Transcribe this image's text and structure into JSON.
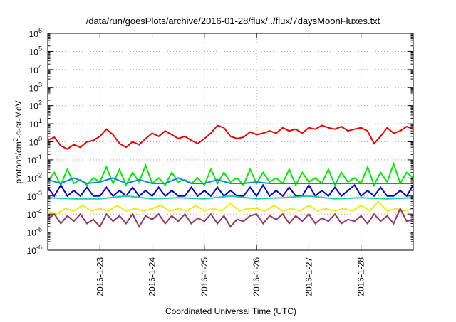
{
  "chart_data": {
    "type": "line",
    "title": "/data/run/goesPlots/archive/2016-01-28/flux/../flux/7daysMoonFluxes.txt",
    "xlabel": "Coordinated Universal Time (UTC)",
    "ylabel": "protons/cm2-s-sr-MeV",
    "yscale": "log",
    "ylim": [
      1e-06,
      1000000.0
    ],
    "xlim": [
      "2016-01-22T00:00",
      "2016-01-29T00:00"
    ],
    "x_ticks": [
      "2016-1-23",
      "2016-1-24",
      "2016-1-25",
      "2016-1-26",
      "2016-1-27",
      "2016-1-28"
    ],
    "y_ticks": [
      {
        "base": "10",
        "exp": "-6"
      },
      {
        "base": "10",
        "exp": "-5"
      },
      {
        "base": "10",
        "exp": "-4"
      },
      {
        "base": "10",
        "exp": "-3"
      },
      {
        "base": "10",
        "exp": "-2"
      },
      {
        "base": "10",
        "exp": "-1"
      },
      {
        "base": "10",
        "exp": "0"
      },
      {
        "base": "10",
        "exp": "1"
      },
      {
        "base": "10",
        "exp": "2"
      },
      {
        "base": "10",
        "exp": "3"
      },
      {
        "base": "10",
        "exp": "4"
      },
      {
        "base": "10",
        "exp": "5"
      },
      {
        "base": "10",
        "exp": "6"
      }
    ],
    "grid": true,
    "legend": "none",
    "series": [
      {
        "color": "#ee0000",
        "x": [
          "2016-01-22T00:00",
          "2016-01-22T03:00",
          "2016-01-22T06:00",
          "2016-01-22T09:00",
          "2016-01-22T12:00",
          "2016-01-22T15:00",
          "2016-01-22T18:00",
          "2016-01-22T21:00",
          "2016-01-23T00:00",
          "2016-01-23T03:00",
          "2016-01-23T06:00",
          "2016-01-23T09:00",
          "2016-01-23T12:00",
          "2016-01-23T15:00",
          "2016-01-23T18:00",
          "2016-01-23T21:00",
          "2016-01-24T00:00",
          "2016-01-24T03:00",
          "2016-01-24T06:00",
          "2016-01-24T09:00",
          "2016-01-24T12:00",
          "2016-01-24T15:00",
          "2016-01-24T18:00",
          "2016-01-24T21:00",
          "2016-01-25T00:00",
          "2016-01-25T03:00",
          "2016-01-25T06:00",
          "2016-01-25T09:00",
          "2016-01-25T12:00",
          "2016-01-25T15:00",
          "2016-01-25T18:00",
          "2016-01-25T21:00",
          "2016-01-26T00:00",
          "2016-01-26T03:00",
          "2016-01-26T06:00",
          "2016-01-26T09:00",
          "2016-01-26T12:00",
          "2016-01-26T15:00",
          "2016-01-26T18:00",
          "2016-01-26T21:00",
          "2016-01-27T00:00",
          "2016-01-27T03:00",
          "2016-01-27T06:00",
          "2016-01-27T09:00",
          "2016-01-27T12:00",
          "2016-01-27T15:00",
          "2016-01-27T18:00",
          "2016-01-27T21:00",
          "2016-01-28T00:00",
          "2016-01-28T03:00",
          "2016-01-28T06:00",
          "2016-01-28T09:00",
          "2016-01-28T12:00",
          "2016-01-28T15:00",
          "2016-01-28T18:00",
          "2016-01-28T21:00",
          "2016-01-29T00:00"
        ],
        "values": [
          1.2,
          1.8,
          0.6,
          0.4,
          0.7,
          0.5,
          1.0,
          1.2,
          2.0,
          5.0,
          2.5,
          0.8,
          0.5,
          1.0,
          0.7,
          1.5,
          3.0,
          2.0,
          4.0,
          2.5,
          1.5,
          2.0,
          1.2,
          0.8,
          1.5,
          3.0,
          8.0,
          6.0,
          2.0,
          1.5,
          1.8,
          3.5,
          2.5,
          3.0,
          4.0,
          3.0,
          6.0,
          4.0,
          5.0,
          3.0,
          6.0,
          5.0,
          8.0,
          6.0,
          5.0,
          7.0,
          4.0,
          5.0,
          6.0,
          4.0,
          0.8,
          2.0,
          6.0,
          3.0,
          4.0,
          7.0,
          5.0
        ]
      },
      {
        "color": "#00ee00",
        "x": [
          "2016-01-22T00:00",
          "2016-01-22T03:00",
          "2016-01-22T06:00",
          "2016-01-22T09:00",
          "2016-01-22T12:00",
          "2016-01-22T15:00",
          "2016-01-22T18:00",
          "2016-01-22T21:00",
          "2016-01-23T00:00",
          "2016-01-23T03:00",
          "2016-01-23T06:00",
          "2016-01-23T09:00",
          "2016-01-23T12:00",
          "2016-01-23T15:00",
          "2016-01-23T18:00",
          "2016-01-23T21:00",
          "2016-01-24T00:00",
          "2016-01-24T03:00",
          "2016-01-24T06:00",
          "2016-01-24T09:00",
          "2016-01-24T12:00",
          "2016-01-24T15:00",
          "2016-01-24T18:00",
          "2016-01-24T21:00",
          "2016-01-25T00:00",
          "2016-01-25T03:00",
          "2016-01-25T06:00",
          "2016-01-25T09:00",
          "2016-01-25T12:00",
          "2016-01-25T15:00",
          "2016-01-25T18:00",
          "2016-01-25T21:00",
          "2016-01-26T00:00",
          "2016-01-26T03:00",
          "2016-01-26T06:00",
          "2016-01-26T09:00",
          "2016-01-26T12:00",
          "2016-01-26T15:00",
          "2016-01-26T18:00",
          "2016-01-26T21:00",
          "2016-01-27T00:00",
          "2016-01-27T03:00",
          "2016-01-27T06:00",
          "2016-01-27T09:00",
          "2016-01-27T12:00",
          "2016-01-27T15:00",
          "2016-01-27T18:00",
          "2016-01-27T21:00",
          "2016-01-28T00:00",
          "2016-01-28T03:00",
          "2016-01-28T06:00",
          "2016-01-28T09:00",
          "2016-01-28T12:00",
          "2016-01-28T15:00",
          "2016-01-28T18:00",
          "2016-01-28T21:00",
          "2016-01-29T00:00"
        ],
        "values": [
          0.006,
          0.02,
          0.004,
          0.03,
          0.005,
          0.008,
          0.004,
          0.01,
          0.006,
          0.04,
          0.005,
          0.03,
          0.004,
          0.02,
          0.006,
          0.05,
          0.005,
          0.01,
          0.004,
          0.02,
          0.006,
          0.008,
          0.005,
          0.01,
          0.004,
          0.03,
          0.005,
          0.02,
          0.006,
          0.01,
          0.004,
          0.03,
          0.005,
          0.02,
          0.006,
          0.01,
          0.005,
          0.03,
          0.004,
          0.02,
          0.006,
          0.01,
          0.005,
          0.03,
          0.004,
          0.02,
          0.006,
          0.01,
          0.005,
          0.04,
          0.004,
          0.02,
          0.006,
          0.06,
          0.005,
          0.02,
          0.01
        ]
      },
      {
        "color": "#0088ee",
        "x": [
          "2016-01-22T00:00",
          "2016-01-22T06:00",
          "2016-01-22T12:00",
          "2016-01-22T18:00",
          "2016-01-23T00:00",
          "2016-01-23T06:00",
          "2016-01-23T12:00",
          "2016-01-23T18:00",
          "2016-01-24T00:00",
          "2016-01-24T06:00",
          "2016-01-24T12:00",
          "2016-01-24T18:00",
          "2016-01-25T00:00",
          "2016-01-25T06:00",
          "2016-01-25T12:00",
          "2016-01-25T18:00",
          "2016-01-26T00:00",
          "2016-01-26T06:00",
          "2016-01-26T12:00",
          "2016-01-26T18:00",
          "2016-01-27T00:00",
          "2016-01-27T06:00",
          "2016-01-27T12:00",
          "2016-01-27T18:00",
          "2016-01-28T00:00",
          "2016-01-28T06:00",
          "2016-01-28T12:00",
          "2016-01-28T18:00",
          "2016-01-29T00:00"
        ],
        "values": [
          0.008,
          0.005,
          0.01,
          0.005,
          0.006,
          0.01,
          0.005,
          0.008,
          0.005,
          0.005,
          0.01,
          0.005,
          0.005,
          0.008,
          0.005,
          0.005,
          0.006,
          0.005,
          0.005,
          0.005,
          0.005,
          0.005,
          0.005,
          0.005,
          0.005,
          0.005,
          0.005,
          0.005,
          0.005
        ]
      },
      {
        "color": "#0000cc",
        "x": [
          "2016-01-22T00:00",
          "2016-01-22T03:00",
          "2016-01-22T06:00",
          "2016-01-22T09:00",
          "2016-01-22T12:00",
          "2016-01-22T15:00",
          "2016-01-22T18:00",
          "2016-01-22T21:00",
          "2016-01-23T00:00",
          "2016-01-23T03:00",
          "2016-01-23T06:00",
          "2016-01-23T09:00",
          "2016-01-23T12:00",
          "2016-01-23T15:00",
          "2016-01-23T18:00",
          "2016-01-23T21:00",
          "2016-01-24T00:00",
          "2016-01-24T03:00",
          "2016-01-24T06:00",
          "2016-01-24T09:00",
          "2016-01-24T12:00",
          "2016-01-24T15:00",
          "2016-01-24T18:00",
          "2016-01-24T21:00",
          "2016-01-25T00:00",
          "2016-01-25T03:00",
          "2016-01-25T06:00",
          "2016-01-25T09:00",
          "2016-01-25T12:00",
          "2016-01-25T15:00",
          "2016-01-25T18:00",
          "2016-01-25T21:00",
          "2016-01-26T00:00",
          "2016-01-26T03:00",
          "2016-01-26T06:00",
          "2016-01-26T09:00",
          "2016-01-26T12:00",
          "2016-01-26T15:00",
          "2016-01-26T18:00",
          "2016-01-26T21:00",
          "2016-01-27T00:00",
          "2016-01-27T03:00",
          "2016-01-27T06:00",
          "2016-01-27T09:00",
          "2016-01-27T12:00",
          "2016-01-27T15:00",
          "2016-01-27T18:00",
          "2016-01-27T21:00",
          "2016-01-28T00:00",
          "2016-01-28T03:00",
          "2016-01-28T06:00",
          "2016-01-28T09:00",
          "2016-01-28T12:00",
          "2016-01-28T15:00",
          "2016-01-28T18:00",
          "2016-01-28T21:00",
          "2016-01-29T00:00"
        ],
        "values": [
          0.003,
          0.001,
          0.004,
          0.001,
          0.002,
          0.001,
          0.003,
          0.001,
          0.001,
          0.003,
          0.001,
          0.002,
          0.001,
          0.003,
          0.001,
          0.002,
          0.001,
          0.003,
          0.001,
          0.002,
          0.001,
          0.001,
          0.003,
          0.001,
          0.002,
          0.001,
          0.003,
          0.001,
          0.002,
          0.001,
          0.001,
          0.003,
          0.001,
          0.004,
          0.001,
          0.002,
          0.001,
          0.003,
          0.001,
          0.001,
          0.004,
          0.001,
          0.002,
          0.001,
          0.003,
          0.001,
          0.002,
          0.004,
          0.001,
          0.002,
          0.001,
          0.003,
          0.001,
          0.001,
          0.002,
          0.001,
          0.004
        ]
      },
      {
        "color": "#22ccaa",
        "x": [
          "2016-01-22T00:00",
          "2016-01-22T12:00",
          "2016-01-23T00:00",
          "2016-01-23T12:00",
          "2016-01-24T00:00",
          "2016-01-24T12:00",
          "2016-01-25T00:00",
          "2016-01-25T12:00",
          "2016-01-26T00:00",
          "2016-01-26T12:00",
          "2016-01-27T00:00",
          "2016-01-27T12:00",
          "2016-01-28T00:00",
          "2016-01-28T12:00",
          "2016-01-29T00:00"
        ],
        "values": [
          0.0008,
          0.0007,
          0.0007,
          0.001,
          0.0007,
          0.0008,
          0.0007,
          0.001,
          0.0007,
          0.0008,
          0.001,
          0.0007,
          0.0008,
          0.0007,
          0.0008
        ]
      },
      {
        "color": "#eeee00",
        "x": [
          "2016-01-22T00:00",
          "2016-01-22T04:00",
          "2016-01-22T08:00",
          "2016-01-22T12:00",
          "2016-01-22T16:00",
          "2016-01-22T20:00",
          "2016-01-23T00:00",
          "2016-01-23T04:00",
          "2016-01-23T08:00",
          "2016-01-23T12:00",
          "2016-01-23T16:00",
          "2016-01-23T20:00",
          "2016-01-24T00:00",
          "2016-01-24T04:00",
          "2016-01-24T08:00",
          "2016-01-24T12:00",
          "2016-01-24T16:00",
          "2016-01-24T20:00",
          "2016-01-25T00:00",
          "2016-01-25T04:00",
          "2016-01-25T08:00",
          "2016-01-25T12:00",
          "2016-01-25T16:00",
          "2016-01-25T20:00",
          "2016-01-26T00:00",
          "2016-01-26T04:00",
          "2016-01-26T08:00",
          "2016-01-26T12:00",
          "2016-01-26T16:00",
          "2016-01-26T20:00",
          "2016-01-27T00:00",
          "2016-01-27T04:00",
          "2016-01-27T08:00",
          "2016-01-27T12:00",
          "2016-01-27T16:00",
          "2016-01-27T20:00",
          "2016-01-28T00:00",
          "2016-01-28T04:00",
          "2016-01-28T08:00",
          "2016-01-28T12:00",
          "2016-01-28T16:00",
          "2016-01-28T20:00",
          "2016-01-29T00:00"
        ],
        "values": [
          0.00015,
          0.0001,
          0.0002,
          0.00015,
          0.0003,
          0.00015,
          0.0002,
          0.00015,
          0.0003,
          0.00015,
          0.0002,
          0.00015,
          0.0002,
          0.0003,
          0.00015,
          0.0002,
          0.00015,
          0.0003,
          0.00015,
          0.0002,
          0.00015,
          0.0004,
          0.00015,
          0.0002,
          0.0002,
          0.00015,
          0.0003,
          0.00015,
          0.0002,
          0.00015,
          0.0003,
          0.00015,
          0.0002,
          0.00015,
          0.0002,
          0.00015,
          0.0003,
          0.00015,
          0.0005,
          0.00015,
          0.0002,
          0.00015,
          0.0002
        ]
      },
      {
        "color": "#993366",
        "x": [
          "2016-01-22T00:00",
          "2016-01-22T03:00",
          "2016-01-22T06:00",
          "2016-01-22T09:00",
          "2016-01-22T12:00",
          "2016-01-22T15:00",
          "2016-01-22T18:00",
          "2016-01-22T21:00",
          "2016-01-23T00:00",
          "2016-01-23T03:00",
          "2016-01-23T06:00",
          "2016-01-23T09:00",
          "2016-01-23T12:00",
          "2016-01-23T15:00",
          "2016-01-23T18:00",
          "2016-01-23T21:00",
          "2016-01-24T00:00",
          "2016-01-24T03:00",
          "2016-01-24T06:00",
          "2016-01-24T09:00",
          "2016-01-24T12:00",
          "2016-01-24T15:00",
          "2016-01-24T18:00",
          "2016-01-24T21:00",
          "2016-01-25T00:00",
          "2016-01-25T03:00",
          "2016-01-25T06:00",
          "2016-01-25T09:00",
          "2016-01-25T12:00",
          "2016-01-25T15:00",
          "2016-01-25T18:00",
          "2016-01-25T21:00",
          "2016-01-26T00:00",
          "2016-01-26T03:00",
          "2016-01-26T06:00",
          "2016-01-26T09:00",
          "2016-01-26T12:00",
          "2016-01-26T15:00",
          "2016-01-26T18:00",
          "2016-01-26T21:00",
          "2016-01-27T00:00",
          "2016-01-27T03:00",
          "2016-01-27T06:00",
          "2016-01-27T09:00",
          "2016-01-27T12:00",
          "2016-01-27T15:00",
          "2016-01-27T18:00",
          "2016-01-27T21:00",
          "2016-01-28T00:00",
          "2016-01-28T03:00",
          "2016-01-28T06:00",
          "2016-01-28T09:00",
          "2016-01-28T12:00",
          "2016-01-28T15:00",
          "2016-01-28T18:00",
          "2016-01-28T21:00",
          "2016-01-29T00:00"
        ],
        "values": [
          5e-05,
          0.0001,
          3e-05,
          8e-05,
          4e-05,
          0.0001,
          3e-05,
          5e-05,
          2e-05,
          0.0001,
          4e-05,
          8e-05,
          3e-05,
          0.0001,
          2e-05,
          8e-05,
          5e-05,
          0.0001,
          3e-05,
          8e-05,
          4e-05,
          0.0001,
          3e-05,
          6e-05,
          4e-05,
          0.0001,
          3e-05,
          8e-05,
          2e-05,
          5e-05,
          4e-05,
          8e-05,
          0.0001,
          3e-05,
          8e-05,
          5e-05,
          0.0001,
          3e-05,
          8e-05,
          4e-05,
          0.0001,
          3e-05,
          6e-05,
          4e-05,
          0.0001,
          3e-05,
          5e-05,
          4e-05,
          8e-05,
          3e-05,
          0.0001,
          4e-05,
          8e-05,
          3e-05,
          0.0002,
          4e-05,
          5e-05
        ]
      }
    ]
  }
}
